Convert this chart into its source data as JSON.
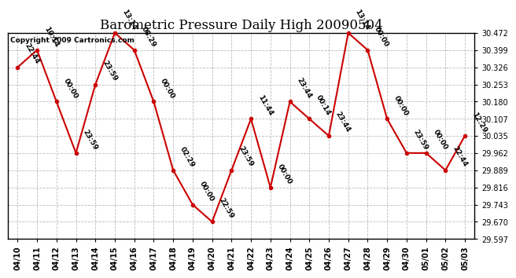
{
  "title": "Barometric Pressure Daily High 20090504",
  "copyright": "Copyright 2009 Cartronics.com",
  "x_labels": [
    "04/10",
    "04/11",
    "04/12",
    "04/13",
    "04/14",
    "04/15",
    "04/16",
    "04/17",
    "04/18",
    "04/19",
    "04/20",
    "04/21",
    "04/22",
    "04/23",
    "04/24",
    "04/25",
    "04/26",
    "04/27",
    "04/28",
    "04/29",
    "04/30",
    "05/01",
    "05/02",
    "05/03"
  ],
  "y_values": [
    30.326,
    30.399,
    30.18,
    29.962,
    30.253,
    30.472,
    30.399,
    30.18,
    29.889,
    29.743,
    29.67,
    29.889,
    30.107,
    29.816,
    30.18,
    30.107,
    30.035,
    30.472,
    30.399,
    30.107,
    29.962,
    29.962,
    29.889,
    30.035
  ],
  "time_labels": [
    "22:44",
    "10:14",
    "00:00",
    "23:59",
    "23:59",
    "13:14",
    "08:29",
    "00:00",
    "02:29",
    "00:00",
    "22:59",
    "23:59",
    "11:44",
    "00:00",
    "23:44",
    "00:14",
    "23:44",
    "13:14",
    "00:00",
    "00:00",
    "23:59",
    "00:00",
    "22:44",
    "12:29"
  ],
  "line_color": "#cc0000",
  "marker_color": "#cc0000",
  "bg_color": "#ffffff",
  "grid_color": "#bbbbbb",
  "ylim_min": 29.597,
  "ylim_max": 30.472,
  "yticks": [
    29.597,
    29.67,
    29.743,
    29.816,
    29.889,
    29.962,
    30.035,
    30.107,
    30.18,
    30.253,
    30.326,
    30.399,
    30.472
  ],
  "title_fontsize": 12,
  "label_fontsize": 6.5,
  "tick_fontsize": 7,
  "copyright_fontsize": 6.5
}
